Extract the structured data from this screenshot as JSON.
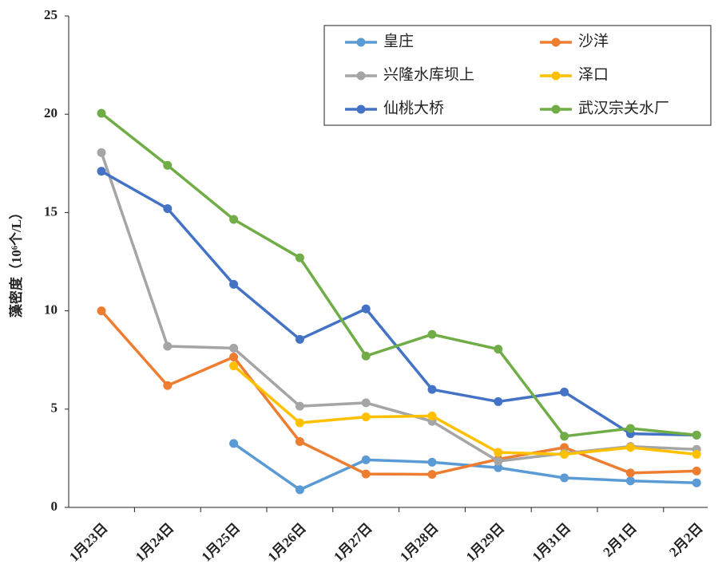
{
  "chart_data": {
    "type": "line",
    "y_label": "藻密度（10⁶个/L）",
    "categories": [
      "1月23日",
      "1月24日",
      "1月25日",
      "1月26日",
      "1月27日",
      "1月28日",
      "1月29日",
      "1月31日",
      "2月1日",
      "2月2日"
    ],
    "series": [
      {
        "name": "皇庄",
        "color": "#5b9bd5",
        "values": [
          null,
          null,
          3.25,
          0.9,
          2.42,
          2.3,
          2.02,
          1.5,
          1.35,
          1.25
        ]
      },
      {
        "name": "沙洋",
        "color": "#ed7d31",
        "values": [
          10.0,
          6.2,
          7.65,
          3.35,
          1.7,
          1.68,
          2.45,
          3.05,
          1.75,
          1.85
        ]
      },
      {
        "name": "兴隆水库坝上",
        "color": "#a5a5a5",
        "values": [
          18.05,
          8.2,
          8.1,
          5.15,
          5.32,
          4.38,
          2.35,
          2.75,
          3.1,
          2.95
        ]
      },
      {
        "name": "泽口",
        "color": "#ffc000",
        "values": [
          null,
          null,
          7.2,
          4.3,
          4.6,
          4.65,
          2.8,
          2.7,
          3.05,
          2.7
        ]
      },
      {
        "name": "仙桃大桥",
        "color": "#4472c4",
        "values": [
          17.1,
          15.2,
          11.35,
          8.55,
          10.1,
          6.0,
          5.38,
          5.87,
          3.75,
          3.68
        ]
      },
      {
        "name": "武汉宗关水厂",
        "color": "#70ad47",
        "values": [
          20.05,
          17.4,
          14.65,
          12.7,
          7.7,
          8.8,
          8.05,
          3.62,
          4.02,
          3.68
        ]
      }
    ],
    "ylim": [
      0,
      25
    ],
    "yticks": [
      0,
      5,
      10,
      15,
      20,
      25
    ],
    "grid": false
  }
}
